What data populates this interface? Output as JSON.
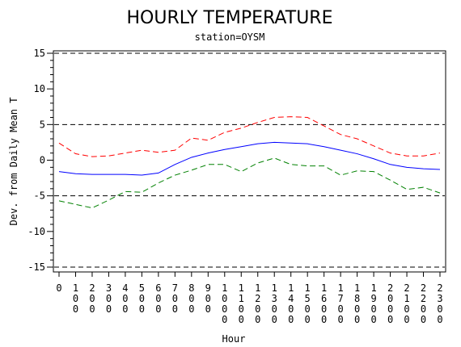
{
  "chart_data": {
    "type": "line",
    "title": "HOURLY TEMPERATURE",
    "subtitle": "station=OYSM",
    "xlabel": "Hour",
    "ylabel": "Dev. from Daily Mean T",
    "ylim": [
      -15,
      15
    ],
    "y_ticks": [
      "-15",
      "-10",
      "-5",
      "0",
      "5",
      "10",
      "15"
    ],
    "x_ticks": [
      [
        "0"
      ],
      [
        "1",
        "0",
        "0"
      ],
      [
        "2",
        "0",
        "0"
      ],
      [
        "3",
        "0",
        "0"
      ],
      [
        "4",
        "0",
        "0"
      ],
      [
        "5",
        "0",
        "0"
      ],
      [
        "6",
        "0",
        "0"
      ],
      [
        "7",
        "0",
        "0"
      ],
      [
        "8",
        "0",
        "0"
      ],
      [
        "9",
        "0",
        "0"
      ],
      [
        "1",
        "0",
        "0",
        "0"
      ],
      [
        "1",
        "1",
        "0",
        "0"
      ],
      [
        "1",
        "2",
        "0",
        "0"
      ],
      [
        "1",
        "3",
        "0",
        "0"
      ],
      [
        "1",
        "4",
        "0",
        "0"
      ],
      [
        "1",
        "5",
        "0",
        "0"
      ],
      [
        "1",
        "6",
        "0",
        "0"
      ],
      [
        "1",
        "7",
        "0",
        "0"
      ],
      [
        "1",
        "8",
        "0",
        "0"
      ],
      [
        "1",
        "9",
        "0",
        "0"
      ],
      [
        "2",
        "0",
        "0",
        "0"
      ],
      [
        "2",
        "1",
        "0",
        "0"
      ],
      [
        "2",
        "2",
        "0",
        "0"
      ],
      [
        "2",
        "3",
        "0",
        "0"
      ]
    ],
    "x": [
      0,
      1,
      2,
      3,
      4,
      5,
      6,
      7,
      8,
      9,
      10,
      11,
      12,
      13,
      14,
      15,
      16,
      17,
      18,
      19,
      20,
      21,
      22,
      23
    ],
    "reference_lines": [
      -15,
      -5,
      5,
      15
    ],
    "grid": false,
    "series": [
      {
        "color": "#0000ff",
        "style": "solid",
        "values": [
          -1.6,
          -1.9,
          -2.0,
          -2.0,
          -2.0,
          -2.1,
          -1.8,
          -0.6,
          0.4,
          1.0,
          1.5,
          1.9,
          2.3,
          2.5,
          2.4,
          2.3,
          1.9,
          1.4,
          0.9,
          0.2,
          -0.6,
          -1.0,
          -1.2,
          -1.3
        ]
      },
      {
        "color": "#ff0000",
        "style": "dashed",
        "values": [
          2.4,
          0.9,
          0.5,
          0.6,
          1.0,
          1.4,
          1.1,
          1.4,
          3.1,
          2.8,
          3.9,
          4.5,
          5.3,
          6.0,
          6.1,
          6.0,
          4.8,
          3.6,
          3.0,
          2.0,
          1.0,
          0.6,
          0.6,
          1.0
        ]
      },
      {
        "color": "#008000",
        "style": "dashed",
        "values": [
          -5.7,
          -6.2,
          -6.7,
          -5.6,
          -4.4,
          -4.5,
          -3.2,
          -2.1,
          -1.4,
          -0.6,
          -0.6,
          -1.6,
          -0.4,
          0.3,
          -0.6,
          -0.8,
          -0.8,
          -2.1,
          -1.5,
          -1.6,
          -2.8,
          -4.1,
          -3.8,
          -4.6
        ]
      }
    ]
  }
}
